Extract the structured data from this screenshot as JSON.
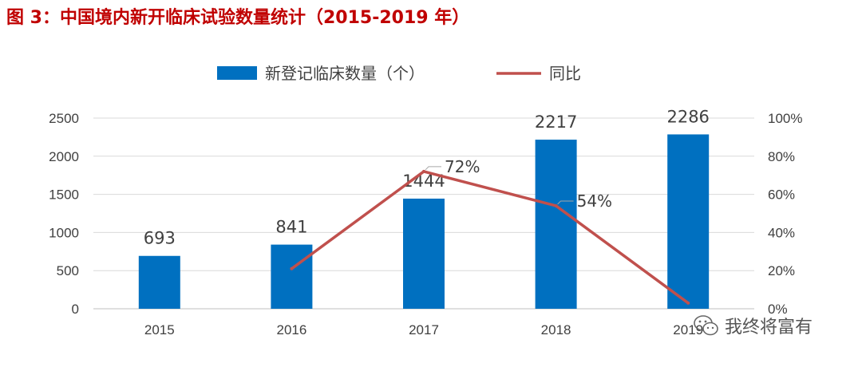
{
  "figure_title": "图 3：中国境内新开临床试验数量统计（2015-2019 年）",
  "watermark_text": "我终将富有",
  "colors": {
    "bar": "#0070c0",
    "line": "#c0504d",
    "title": "#c00000",
    "grid": "#d9d9d9"
  },
  "chart_data": {
    "type": "bar",
    "title": "",
    "categories": [
      "2015",
      "2016",
      "2017",
      "2018",
      "2019"
    ],
    "series": [
      {
        "name": "新登记临床数量（个）",
        "type": "bar",
        "axis": "left",
        "values": [
          693,
          841,
          1444,
          2217,
          2286
        ],
        "value_labels": [
          "693",
          "841",
          "1444",
          "2217",
          "2286"
        ]
      },
      {
        "name": "同比",
        "type": "line",
        "axis": "right",
        "values": [
          null,
          21,
          72,
          54,
          3
        ],
        "value_labels": [
          null,
          null,
          "72%",
          "54%",
          null
        ]
      }
    ],
    "y_left": {
      "min": 0,
      "max": 2500,
      "ticks": [
        "0",
        "500",
        "1000",
        "1500",
        "2000",
        "2500"
      ]
    },
    "y_right": {
      "min": 0,
      "max": 100,
      "ticks": [
        "0%",
        "20%",
        "40%",
        "60%",
        "80%",
        "100%"
      ]
    },
    "grid": true,
    "legend_position": "top"
  }
}
